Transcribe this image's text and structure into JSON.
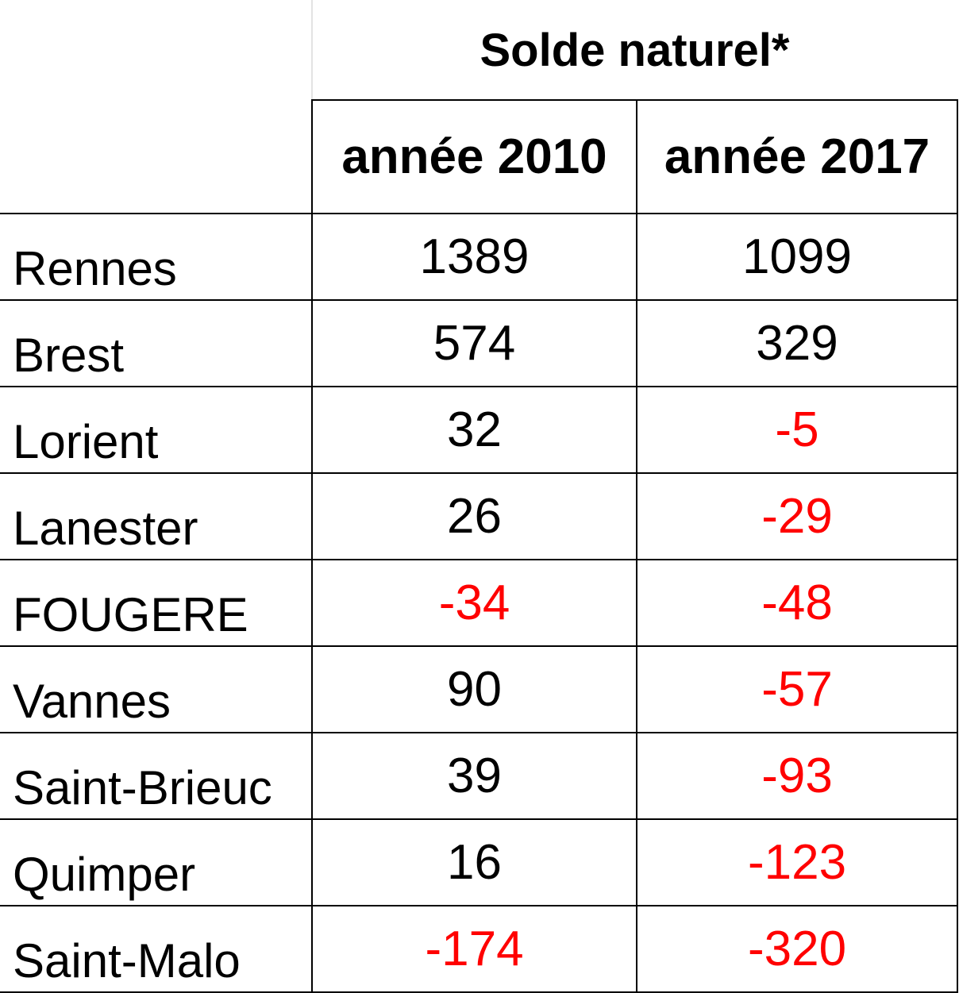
{
  "chart_data": {
    "type": "table",
    "title": "Solde naturel*",
    "columns": [
      "année 2010",
      "année 2017"
    ],
    "rows": [
      {
        "city": "Rennes",
        "values": [
          1389,
          1099
        ]
      },
      {
        "city": "Brest",
        "values": [
          574,
          329
        ]
      },
      {
        "city": "Lorient",
        "values": [
          32,
          -5
        ]
      },
      {
        "city": "Lanester",
        "values": [
          26,
          -29
        ]
      },
      {
        "city": "FOUGERE",
        "values": [
          -34,
          -48
        ]
      },
      {
        "city": "Vannes",
        "values": [
          90,
          -57
        ]
      },
      {
        "city": "Saint-Brieuc",
        "values": [
          39,
          -93
        ]
      },
      {
        "city": "Quimper",
        "values": [
          16,
          -123
        ]
      },
      {
        "city": "Saint-Malo",
        "values": [
          -174,
          -320
        ]
      }
    ],
    "colors": {
      "positive": "#000000",
      "negative": "#ff0000",
      "grid": "#000000"
    }
  }
}
